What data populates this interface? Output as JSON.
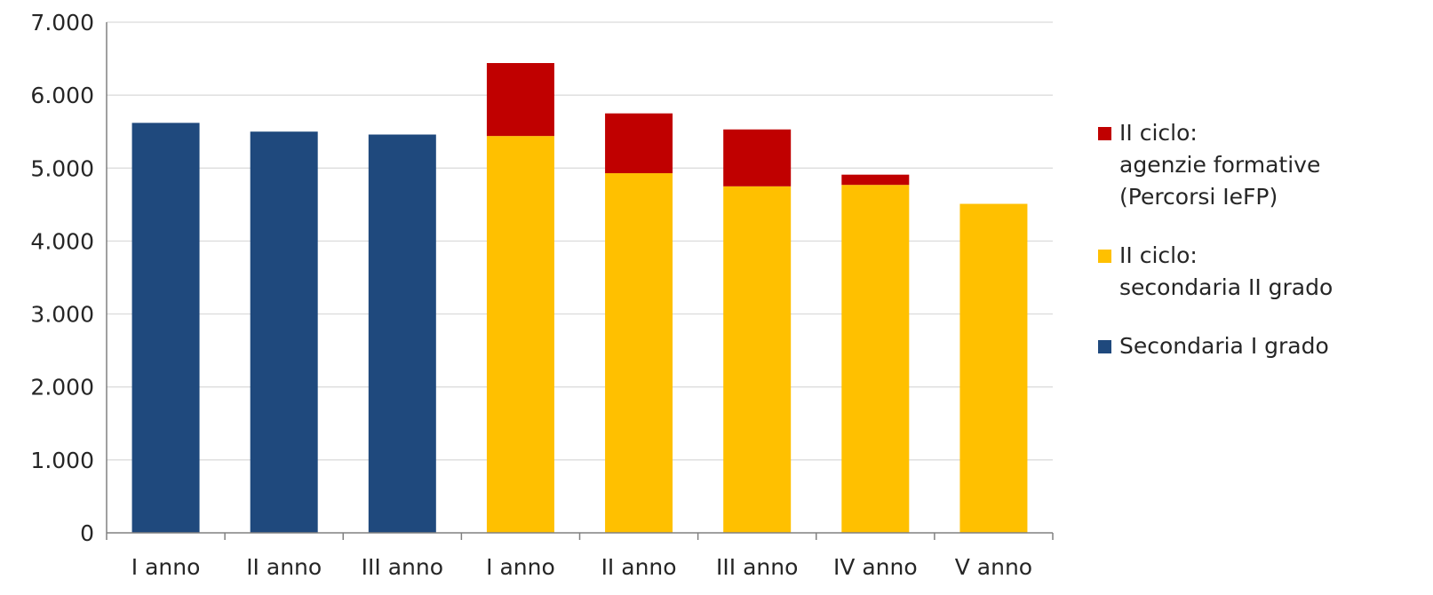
{
  "chart_data": {
    "type": "bar",
    "stacked": true,
    "categories": [
      "I anno",
      "II anno",
      "III anno",
      "I anno",
      "II anno",
      "III anno",
      "IV anno",
      "V anno"
    ],
    "series": [
      {
        "name": "Secondaria I grado",
        "color": "#1f497d",
        "values": [
          5620,
          5500,
          5460,
          0,
          0,
          0,
          0,
          0
        ]
      },
      {
        "name": "II ciclo:\nsecondaria II grado",
        "color": "#ffc000",
        "values": [
          0,
          0,
          0,
          5440,
          4930,
          4750,
          4770,
          4510
        ]
      },
      {
        "name": "II ciclo:\nagenzie formative\n(Percorsi IeFP)",
        "color": "#c00000",
        "values": [
          0,
          0,
          0,
          1000,
          820,
          780,
          140,
          0
        ]
      }
    ],
    "ylim": [
      0,
      7000
    ],
    "yticks": [
      "0",
      "1.000",
      "2.000",
      "3.000",
      "4.000",
      "5.000",
      "6.000",
      "7.000"
    ],
    "ytick_values": [
      0,
      1000,
      2000,
      3000,
      4000,
      5000,
      6000,
      7000
    ],
    "grid": true,
    "legend_position": "right",
    "legend_order": [
      2,
      1,
      0
    ]
  }
}
